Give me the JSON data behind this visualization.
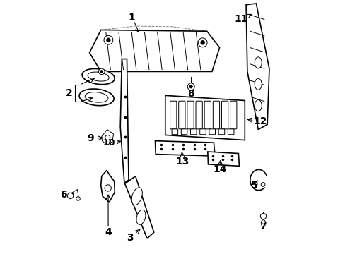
{
  "background_color": "#ffffff",
  "line_color": "#000000",
  "label_color": "#000000",
  "fig_width": 4.89,
  "fig_height": 3.6,
  "dpi": 100,
  "label_fontsize": 10,
  "arrow_color": "#000000",
  "lw_main": 1.2,
  "lw_thin": 0.7
}
